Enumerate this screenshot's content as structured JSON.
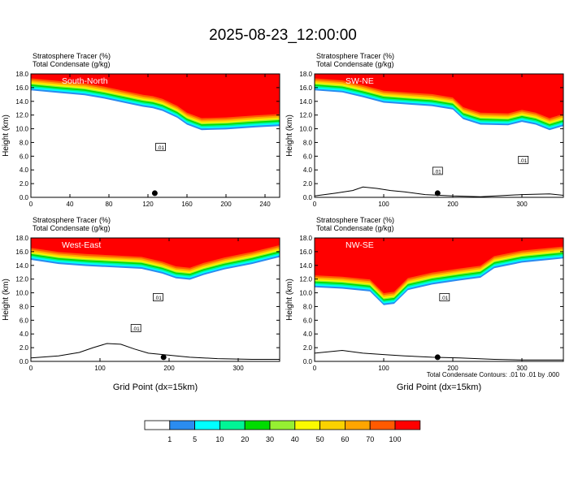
{
  "title": "2025-08-23_12:00:00",
  "panel_header": {
    "line1": "Stratosphere Tracer   (%)",
    "line2": "Total Condensate   (g/kg)"
  },
  "y_axis_label": "Height (km)",
  "x_axis_label": "Grid Point (dx=15km)",
  "contour_note": "Total Condensate Contours: .01 to .01 by .000",
  "contour_label": ".01",
  "palette": [
    "#ffffff",
    "#2b8cf0",
    "#00ffff",
    "#00f596",
    "#00dc00",
    "#96f032",
    "#fafa00",
    "#fad200",
    "#ffa500",
    "#ff5a00",
    "#ff0000"
  ],
  "legend": {
    "labels": [
      "1",
      "5",
      "10",
      "20",
      "30",
      "40",
      "50",
      "60",
      "70",
      "100"
    ]
  },
  "chart_data": [
    {
      "type": "heatmap",
      "name": "South-North",
      "xlabel": "",
      "ylabel": "Height (km)",
      "xlim": [
        0,
        255
      ],
      "ylim": [
        0,
        18
      ],
      "xticks": [
        "0",
        "40",
        "80",
        "120",
        "160",
        "200",
        "240"
      ],
      "xtick_values": [
        0,
        40,
        80,
        120,
        160,
        200,
        240
      ],
      "yticks": [
        "0.0",
        "2.0",
        "4.0",
        "6.0",
        "8.0",
        "10.0",
        "12.0",
        "14.0",
        "16.0",
        "18.0"
      ],
      "tracer_base_km": [
        [
          0,
          15.6
        ],
        [
          30,
          15.2
        ],
        [
          55,
          14.9
        ],
        [
          75,
          14.4
        ],
        [
          95,
          13.8
        ],
        [
          115,
          13.2
        ],
        [
          125,
          13.0
        ],
        [
          135,
          12.6
        ],
        [
          150,
          11.6
        ],
        [
          160,
          10.6
        ],
        [
          175,
          9.8
        ],
        [
          200,
          9.9
        ],
        [
          230,
          10.2
        ],
        [
          255,
          10.4
        ]
      ],
      "terrain_km": [
        [
          0,
          0
        ],
        [
          255,
          0
        ]
      ],
      "marker_x": 127,
      "contour_labels_xy": [
        [
          133,
          7.3
        ]
      ]
    },
    {
      "type": "heatmap",
      "name": "SW-NE",
      "xlabel": "",
      "ylabel": "Height (km)",
      "xlim": [
        0,
        360
      ],
      "ylim": [
        0,
        18
      ],
      "xticks": [
        "0",
        "100",
        "200",
        "300"
      ],
      "xtick_values": [
        0,
        100,
        200,
        300
      ],
      "yticks": [
        "0.0",
        "2.0",
        "4.0",
        "6.0",
        "8.0",
        "10.0",
        "12.0",
        "14.0",
        "16.0",
        "18.0"
      ],
      "tracer_base_km": [
        [
          0,
          15.6
        ],
        [
          40,
          15.3
        ],
        [
          70,
          14.6
        ],
        [
          100,
          13.8
        ],
        [
          140,
          13.5
        ],
        [
          170,
          13.3
        ],
        [
          200,
          12.8
        ],
        [
          215,
          11.4
        ],
        [
          240,
          10.6
        ],
        [
          280,
          10.5
        ],
        [
          300,
          11.0
        ],
        [
          320,
          10.6
        ],
        [
          340,
          9.8
        ],
        [
          360,
          10.4
        ]
      ],
      "terrain_km": [
        [
          0,
          0.2
        ],
        [
          30,
          0.6
        ],
        [
          55,
          1.0
        ],
        [
          70,
          1.5
        ],
        [
          90,
          1.3
        ],
        [
          110,
          1.0
        ],
        [
          130,
          0.8
        ],
        [
          160,
          0.4
        ],
        [
          200,
          0.2
        ],
        [
          240,
          0.1
        ],
        [
          300,
          0.4
        ],
        [
          340,
          0.5
        ],
        [
          360,
          0.3
        ]
      ],
      "marker_x": 178,
      "contour_labels_xy": [
        [
          178,
          3.8
        ],
        [
          302,
          5.4
        ]
      ]
    },
    {
      "type": "heatmap",
      "name": "West-East",
      "xlabel": "Grid Point (dx=15km)",
      "ylabel": "Height (km)",
      "xlim": [
        0,
        360
      ],
      "ylim": [
        0,
        18
      ],
      "xticks": [
        "0",
        "100",
        "200",
        "300"
      ],
      "xtick_values": [
        0,
        100,
        200,
        300
      ],
      "yticks": [
        "0.0",
        "2.0",
        "4.0",
        "6.0",
        "8.0",
        "10.0",
        "12.0",
        "14.0",
        "16.0",
        "18.0"
      ],
      "tracer_base_km": [
        [
          0,
          14.8
        ],
        [
          40,
          14.2
        ],
        [
          80,
          13.9
        ],
        [
          120,
          13.7
        ],
        [
          160,
          13.5
        ],
        [
          190,
          12.8
        ],
        [
          210,
          12.1
        ],
        [
          230,
          11.9
        ],
        [
          250,
          12.6
        ],
        [
          280,
          13.4
        ],
        [
          320,
          14.2
        ],
        [
          360,
          15.2
        ]
      ],
      "terrain_km": [
        [
          0,
          0.5
        ],
        [
          40,
          0.8
        ],
        [
          70,
          1.3
        ],
        [
          90,
          2.0
        ],
        [
          110,
          2.6
        ],
        [
          130,
          2.5
        ],
        [
          150,
          1.8
        ],
        [
          170,
          1.2
        ],
        [
          200,
          0.9
        ],
        [
          230,
          0.6
        ],
        [
          270,
          0.4
        ],
        [
          320,
          0.3
        ],
        [
          360,
          0.3
        ]
      ],
      "marker_x": 192,
      "contour_labels_xy": [
        [
          152,
          4.8
        ],
        [
          184,
          9.3
        ]
      ]
    },
    {
      "type": "heatmap",
      "name": "NW-SE",
      "xlabel": "Grid Point (dx=15km)",
      "ylabel": "Height (km)",
      "xlim": [
        0,
        360
      ],
      "ylim": [
        0,
        18
      ],
      "xticks": [
        "0",
        "100",
        "200",
        "300"
      ],
      "xtick_values": [
        0,
        100,
        200,
        300
      ],
      "yticks": [
        "0.0",
        "2.0",
        "4.0",
        "6.0",
        "8.0",
        "10.0",
        "12.0",
        "14.0",
        "16.0",
        "18.0"
      ],
      "tracer_base_km": [
        [
          0,
          10.8
        ],
        [
          40,
          10.6
        ],
        [
          80,
          10.2
        ],
        [
          100,
          8.2
        ],
        [
          115,
          8.4
        ],
        [
          135,
          10.4
        ],
        [
          170,
          11.2
        ],
        [
          210,
          11.8
        ],
        [
          240,
          12.2
        ],
        [
          260,
          13.6
        ],
        [
          300,
          14.4
        ],
        [
          340,
          14.8
        ],
        [
          360,
          15.0
        ]
      ],
      "terrain_km": [
        [
          0,
          1.2
        ],
        [
          40,
          1.6
        ],
        [
          70,
          1.2
        ],
        [
          100,
          1.0
        ],
        [
          130,
          0.8
        ],
        [
          170,
          0.6
        ],
        [
          210,
          0.5
        ],
        [
          260,
          0.3
        ],
        [
          300,
          0.2
        ],
        [
          360,
          0.2
        ]
      ],
      "marker_x": 178,
      "contour_labels_xy": [
        [
          188,
          9.3
        ]
      ]
    }
  ]
}
